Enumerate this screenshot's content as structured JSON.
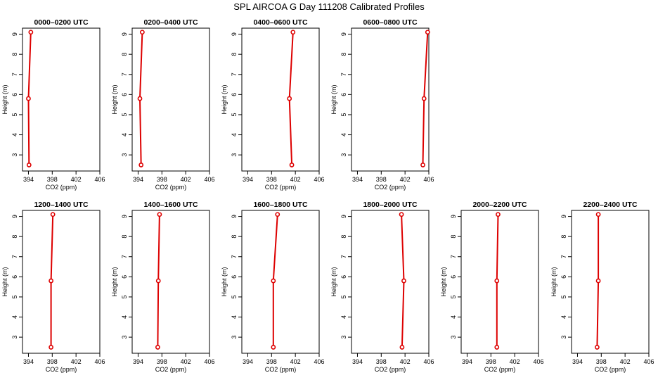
{
  "title": "SPL AIRCOA G  Day 111208  Calibrated Profiles",
  "colors": {
    "series": "#dd0000",
    "axis": "#000000"
  },
  "chart_data": [
    {
      "type": "line",
      "title": "0000–0200 UTC",
      "xlabel": "CO2 (ppm)",
      "ylabel": "Height (m)",
      "xlim": [
        393,
        406
      ],
      "ylim": [
        2.2,
        9.3
      ],
      "xticks": [
        394,
        398,
        402,
        406
      ],
      "yticks": [
        3,
        4,
        5,
        6,
        7,
        8,
        9
      ],
      "x": [
        394.1,
        394.0,
        394.4
      ],
      "y": [
        2.5,
        5.8,
        9.1
      ]
    },
    {
      "type": "line",
      "title": "0200–0400 UTC",
      "xlabel": "CO2 (ppm)",
      "ylabel": "Height (m)",
      "xlim": [
        393,
        406
      ],
      "ylim": [
        2.2,
        9.3
      ],
      "xticks": [
        394,
        398,
        402,
        406
      ],
      "yticks": [
        3,
        4,
        5,
        6,
        7,
        8,
        9
      ],
      "x": [
        394.5,
        394.3,
        394.7
      ],
      "y": [
        2.5,
        5.8,
        9.1
      ]
    },
    {
      "type": "line",
      "title": "0400–0600 UTC",
      "xlabel": "CO2 (ppm)",
      "ylabel": "Height (m)",
      "xlim": [
        393,
        406
      ],
      "ylim": [
        2.2,
        9.3
      ],
      "xticks": [
        394,
        398,
        402,
        406
      ],
      "yticks": [
        3,
        4,
        5,
        6,
        7,
        8,
        9
      ],
      "x": [
        401.4,
        401.0,
        401.6
      ],
      "y": [
        2.5,
        5.8,
        9.1
      ]
    },
    {
      "type": "line",
      "title": "0600–0800 UTC",
      "xlabel": "CO2 (ppm)",
      "ylabel": "Height (m)",
      "xlim": [
        393,
        406
      ],
      "ylim": [
        2.2,
        9.3
      ],
      "xticks": [
        394,
        398,
        402,
        406
      ],
      "yticks": [
        3,
        4,
        5,
        6,
        7,
        8,
        9
      ],
      "x": [
        405.0,
        405.2,
        405.8
      ],
      "y": [
        2.5,
        5.8,
        9.1
      ]
    },
    {
      "type": "line",
      "title": "1200–1400 UTC",
      "xlabel": "CO2 (ppm)",
      "ylabel": "Height (m)",
      "xlim": [
        393,
        406
      ],
      "ylim": [
        2.2,
        9.3
      ],
      "xticks": [
        394,
        398,
        402,
        406
      ],
      "yticks": [
        3,
        4,
        5,
        6,
        7,
        8,
        9
      ],
      "x": [
        397.8,
        397.8,
        398.1
      ],
      "y": [
        2.5,
        5.8,
        9.1
      ]
    },
    {
      "type": "line",
      "title": "1400–1600 UTC",
      "xlabel": "CO2 (ppm)",
      "ylabel": "Height (m)",
      "xlim": [
        393,
        406
      ],
      "ylim": [
        2.2,
        9.3
      ],
      "xticks": [
        394,
        398,
        402,
        406
      ],
      "yticks": [
        3,
        4,
        5,
        6,
        7,
        8,
        9
      ],
      "x": [
        397.3,
        397.4,
        397.6
      ],
      "y": [
        2.5,
        5.8,
        9.1
      ]
    },
    {
      "type": "line",
      "title": "1600–1800 UTC",
      "xlabel": "CO2 (ppm)",
      "ylabel": "Height (m)",
      "xlim": [
        393,
        406
      ],
      "ylim": [
        2.2,
        9.3
      ],
      "xticks": [
        394,
        398,
        402,
        406
      ],
      "yticks": [
        3,
        4,
        5,
        6,
        7,
        8,
        9
      ],
      "x": [
        398.3,
        398.3,
        399.0
      ],
      "y": [
        2.5,
        5.8,
        9.1
      ]
    },
    {
      "type": "line",
      "title": "1800–2000 UTC",
      "xlabel": "CO2 (ppm)",
      "ylabel": "Height (m)",
      "xlim": [
        393,
        406
      ],
      "ylim": [
        2.2,
        9.3
      ],
      "xticks": [
        394,
        398,
        402,
        406
      ],
      "yticks": [
        3,
        4,
        5,
        6,
        7,
        8,
        9
      ],
      "x": [
        401.5,
        401.8,
        401.4
      ],
      "y": [
        2.5,
        5.8,
        9.1
      ]
    },
    {
      "type": "line",
      "title": "2000–2200 UTC",
      "xlabel": "CO2 (ppm)",
      "ylabel": "Height (m)",
      "xlim": [
        393,
        406
      ],
      "ylim": [
        2.2,
        9.3
      ],
      "xticks": [
        394,
        398,
        402,
        406
      ],
      "yticks": [
        3,
        4,
        5,
        6,
        7,
        8,
        9
      ],
      "x": [
        399.0,
        399.0,
        399.2
      ],
      "y": [
        2.5,
        5.8,
        9.1
      ]
    },
    {
      "type": "line",
      "title": "2200–2400 UTC",
      "xlabel": "CO2 (ppm)",
      "ylabel": "Height (m)",
      "xlim": [
        393,
        406
      ],
      "ylim": [
        2.2,
        9.3
      ],
      "xticks": [
        394,
        398,
        402,
        406
      ],
      "yticks": [
        3,
        4,
        5,
        6,
        7,
        8,
        9
      ],
      "x": [
        397.3,
        397.5,
        397.5
      ],
      "y": [
        2.5,
        5.8,
        9.1
      ]
    }
  ]
}
